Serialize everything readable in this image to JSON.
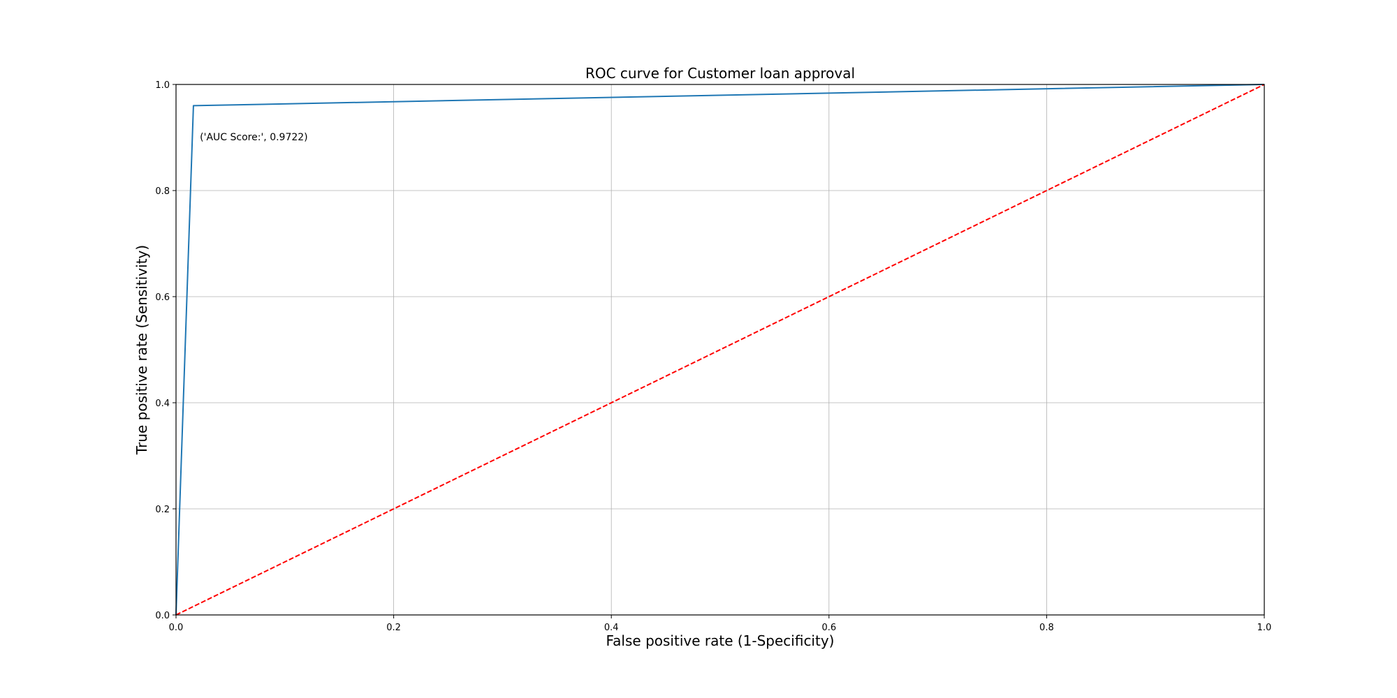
{
  "chart_data": {
    "type": "line",
    "title": "ROC curve for Customer loan approval",
    "xlabel": "False positive rate (1-Specificity)",
    "ylabel": "True positive rate (Sensitivity)",
    "xlim": [
      0,
      1
    ],
    "ylim": [
      0,
      1
    ],
    "grid": true,
    "x_ticks": [
      0.0,
      0.2,
      0.4,
      0.6,
      0.8,
      1.0
    ],
    "y_ticks": [
      0.0,
      0.2,
      0.4,
      0.6,
      0.8,
      1.0
    ],
    "x_tick_labels": [
      "0.0",
      "0.2",
      "0.4",
      "0.6",
      "0.8",
      "1.0"
    ],
    "y_tick_labels": [
      "0.0",
      "0.2",
      "0.4",
      "0.6",
      "0.8",
      "1.0"
    ],
    "series": [
      {
        "x": [
          0.0,
          0.016,
          1.0
        ],
        "y": [
          0.0,
          0.96,
          1.0
        ],
        "color": "#1f77b4",
        "style": "solid"
      },
      {
        "x": [
          0.0,
          1.0
        ],
        "y": [
          0.0,
          1.0
        ],
        "color": "#ff0000",
        "style": "dashed"
      }
    ],
    "annotations": [
      {
        "text": "('AUC Score:', 0.9722)",
        "x": 0.02,
        "y": 0.9
      }
    ]
  }
}
